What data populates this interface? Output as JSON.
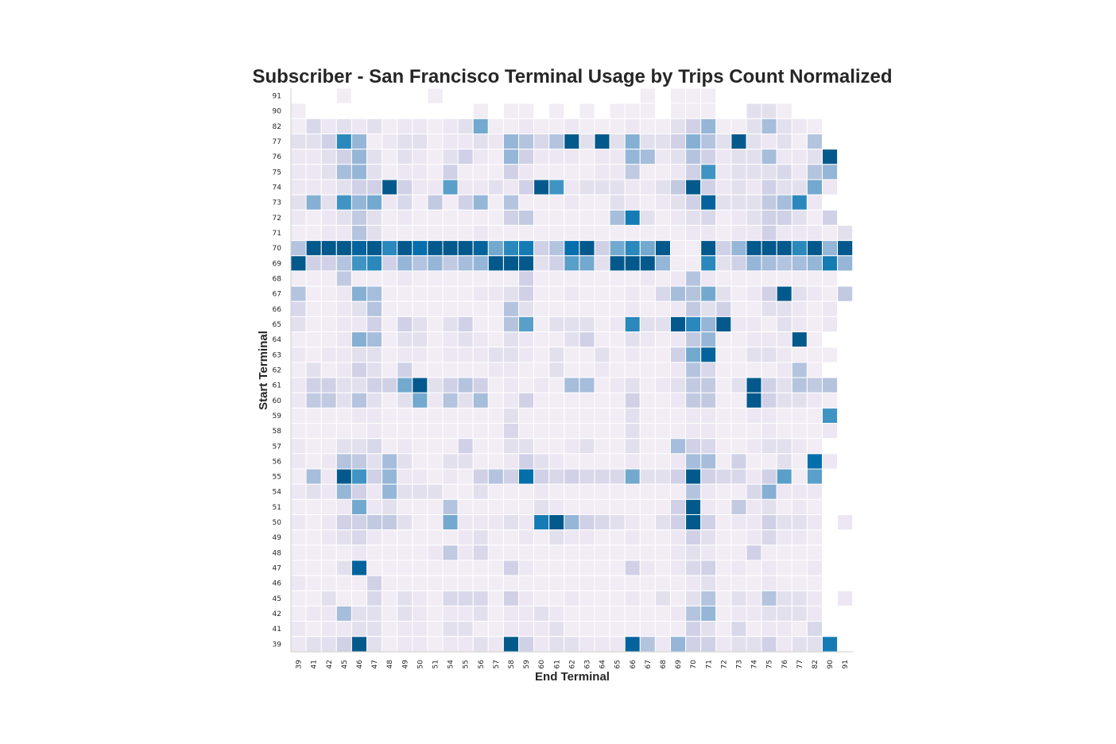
{
  "chart_data": {
    "type": "heatmap",
    "title": "Subscriber - San Francisco Terminal Usage by Trips Count Normalized",
    "xlabel": "End Terminal",
    "ylabel": "Start Terminal",
    "x_categories": [
      "39",
      "41",
      "42",
      "45",
      "46",
      "47",
      "48",
      "49",
      "50",
      "51",
      "54",
      "55",
      "56",
      "57",
      "58",
      "59",
      "60",
      "61",
      "62",
      "63",
      "64",
      "65",
      "66",
      "67",
      "68",
      "69",
      "70",
      "71",
      "72",
      "73",
      "74",
      "75",
      "76",
      "77",
      "82",
      "90",
      "91"
    ],
    "y_categories": [
      "91",
      "90",
      "82",
      "77",
      "76",
      "75",
      "74",
      "73",
      "72",
      "71",
      "70",
      "69",
      "68",
      "67",
      "66",
      "65",
      "64",
      "63",
      "62",
      "61",
      "60",
      "59",
      "58",
      "57",
      "56",
      "55",
      "54",
      "51",
      "50",
      "49",
      "48",
      "47",
      "46",
      "45",
      "42",
      "41",
      "39"
    ],
    "color_scale": "PuBu",
    "value_range": [
      0,
      1
    ],
    "grid": false,
    "legend": "none",
    "rows": [
      [
        0,
        0,
        0,
        0.1,
        0,
        0,
        0,
        0,
        0,
        0.1,
        0,
        0,
        0,
        0,
        0,
        0,
        0,
        0,
        0,
        0,
        0,
        0,
        0,
        0.1,
        0,
        0.1,
        0.1,
        0.1,
        0,
        0,
        0,
        0,
        0,
        0,
        0,
        0,
        0
      ],
      [
        0.1,
        0,
        0,
        0,
        0,
        0,
        0,
        0,
        0,
        0,
        0,
        0,
        0.1,
        0,
        0.1,
        0.1,
        0,
        0.1,
        0,
        0.1,
        0,
        0.1,
        0.1,
        0.1,
        0,
        0.1,
        0.1,
        0.1,
        0,
        0,
        0.2,
        0.2,
        0.1,
        0,
        0,
        0,
        0
      ],
      [
        0.1,
        0.25,
        0.15,
        0.2,
        0.15,
        0.2,
        0.1,
        0.15,
        0.15,
        0.1,
        0.15,
        0.2,
        0.6,
        0.1,
        0.1,
        0.15,
        0.1,
        0.1,
        0.15,
        0.1,
        0.1,
        0.1,
        0.15,
        0.1,
        0.1,
        0.2,
        0.3,
        0.5,
        0.1,
        0.1,
        0.2,
        0.45,
        0.2,
        0.15,
        0.1,
        0,
        0
      ],
      [
        0.2,
        0.2,
        0.3,
        0.75,
        0.5,
        0.1,
        0.15,
        0.2,
        0.2,
        0.1,
        0.15,
        0.15,
        0.2,
        0.15,
        0.5,
        0.4,
        0.25,
        0.4,
        0.95,
        0.2,
        0.95,
        0.2,
        0.55,
        0.2,
        0.2,
        0.3,
        0.55,
        0.4,
        0.2,
        0.95,
        0.2,
        0.15,
        0.2,
        0.1,
        0.4,
        0,
        0
      ],
      [
        0.15,
        0.15,
        0.2,
        0.3,
        0.5,
        0.2,
        0.1,
        0.2,
        0.15,
        0.1,
        0.2,
        0.3,
        0.15,
        0.1,
        0.5,
        0.3,
        0.15,
        0.15,
        0.15,
        0.1,
        0.15,
        0.15,
        0.5,
        0.45,
        0.15,
        0.2,
        0.4,
        0.3,
        0.15,
        0.2,
        0.2,
        0.45,
        0.15,
        0.15,
        0.2,
        0.95,
        0
      ],
      [
        0.15,
        0.15,
        0.2,
        0.45,
        0.5,
        0.2,
        0.1,
        0.15,
        0.15,
        0.1,
        0.3,
        0.1,
        0.1,
        0.1,
        0.3,
        0.15,
        0.1,
        0.1,
        0.1,
        0.1,
        0.15,
        0.15,
        0.35,
        0.1,
        0.1,
        0.15,
        0.3,
        0.7,
        0.15,
        0.2,
        0.2,
        0.2,
        0.25,
        0.15,
        0.4,
        0.5,
        0
      ],
      [
        0.15,
        0.15,
        0.15,
        0.2,
        0.3,
        0.3,
        0.95,
        0.3,
        0.15,
        0.15,
        0.65,
        0.15,
        0.15,
        0.2,
        0.15,
        0.3,
        0.95,
        0.7,
        0.15,
        0.2,
        0.2,
        0.2,
        0.15,
        0.15,
        0.2,
        0.35,
        0.95,
        0.3,
        0.15,
        0.2,
        0.15,
        0.3,
        0.2,
        0.2,
        0.6,
        0.15,
        0
      ],
      [
        0.2,
        0.55,
        0.2,
        0.7,
        0.5,
        0.6,
        0.15,
        0.25,
        0.1,
        0.35,
        0.1,
        0.3,
        0.5,
        0.1,
        0.4,
        0.1,
        0.1,
        0.1,
        0.15,
        0.1,
        0.1,
        0.2,
        0.15,
        0.1,
        0.15,
        0.2,
        0.3,
        0.9,
        0.2,
        0.2,
        0.2,
        0.35,
        0.45,
        0.75,
        0.15,
        0,
        0
      ],
      [
        0.15,
        0.1,
        0.15,
        0.2,
        0.35,
        0.2,
        0.1,
        0.15,
        0.1,
        0.1,
        0.1,
        0.1,
        0.1,
        0.1,
        0.3,
        0.35,
        0.1,
        0.1,
        0.1,
        0.1,
        0.1,
        0.45,
        0.8,
        0.2,
        0.1,
        0.15,
        0.2,
        0.25,
        0.1,
        0.15,
        0.2,
        0.3,
        0.3,
        0.2,
        0.1,
        0.3,
        0
      ],
      [
        0.1,
        0.1,
        0.15,
        0.15,
        0.4,
        0.2,
        0.1,
        0.1,
        0.1,
        0.1,
        0.1,
        0.1,
        0.15,
        0.1,
        0.1,
        0.1,
        0.1,
        0.1,
        0.1,
        0.1,
        0.1,
        0.1,
        0.1,
        0.1,
        0.1,
        0.1,
        0.15,
        0.15,
        0.1,
        0.15,
        0.15,
        0.3,
        0.15,
        0.15,
        0.15,
        0.1,
        0.2
      ],
      [
        0.4,
        0.95,
        0.95,
        0.95,
        0.9,
        0.95,
        0.75,
        0.95,
        0.85,
        0.95,
        0.95,
        0.95,
        0.9,
        0.6,
        0.75,
        0.8,
        0.3,
        0.4,
        0.85,
        0.95,
        0.3,
        0.6,
        0.75,
        0.6,
        0.95,
        0.1,
        0.1,
        0.95,
        0.3,
        0.5,
        0.95,
        0.95,
        0.95,
        0.75,
        0.95,
        0.5,
        0.95
      ],
      [
        0.95,
        0.3,
        0.3,
        0.4,
        0.7,
        0.75,
        0.3,
        0.5,
        0.4,
        0.5,
        0.35,
        0.45,
        0.5,
        0.95,
        0.95,
        0.95,
        0.2,
        0.3,
        0.65,
        0.6,
        0.2,
        0.95,
        0.95,
        0.95,
        0.5,
        0.1,
        0.1,
        0.75,
        0.2,
        0.3,
        0.5,
        0.45,
        0.4,
        0.45,
        0.5,
        0.8,
        0.5
      ],
      [
        0.1,
        0.1,
        0.1,
        0.35,
        0.1,
        0.1,
        0.1,
        0.15,
        0.1,
        0.1,
        0.1,
        0.1,
        0.1,
        0.1,
        0.1,
        0.3,
        0.1,
        0.1,
        0.1,
        0.1,
        0.1,
        0.1,
        0.1,
        0.15,
        0.1,
        0.15,
        0.4,
        0.15,
        0.1,
        0.1,
        0.1,
        0.1,
        0.1,
        0.1,
        0.1,
        0.1,
        0
      ],
      [
        0.4,
        0.1,
        0.1,
        0.15,
        0.55,
        0.45,
        0.1,
        0.1,
        0.1,
        0.1,
        0.1,
        0.1,
        0.15,
        0.15,
        0.2,
        0.3,
        0.1,
        0.1,
        0.15,
        0.1,
        0.1,
        0.1,
        0.15,
        0.1,
        0.25,
        0.45,
        0.4,
        0.6,
        0.2,
        0.1,
        0.15,
        0.3,
        0.95,
        0.2,
        0.15,
        0.1,
        0.35
      ],
      [
        0.25,
        0.1,
        0.1,
        0.15,
        0.2,
        0.4,
        0.1,
        0.1,
        0.1,
        0.1,
        0.1,
        0.1,
        0.1,
        0.1,
        0.4,
        0.2,
        0.1,
        0.1,
        0.1,
        0.1,
        0.1,
        0.1,
        0.15,
        0.1,
        0.1,
        0.15,
        0.35,
        0.2,
        0.3,
        0.1,
        0.1,
        0.2,
        0.2,
        0.15,
        0.1,
        0.15,
        0
      ],
      [
        0.2,
        0.1,
        0.1,
        0.15,
        0.15,
        0.3,
        0.1,
        0.3,
        0.2,
        0.1,
        0.2,
        0.3,
        0.1,
        0.1,
        0.4,
        0.65,
        0.1,
        0.2,
        0.2,
        0.2,
        0.1,
        0.15,
        0.75,
        0.2,
        0.2,
        0.95,
        0.75,
        0.5,
        0.95,
        0.15,
        0.15,
        0.1,
        0.2,
        0.15,
        0.1,
        0.15,
        0
      ],
      [
        0.1,
        0.1,
        0.1,
        0.15,
        0.55,
        0.45,
        0.1,
        0.2,
        0.2,
        0.1,
        0.15,
        0.2,
        0.15,
        0.1,
        0.2,
        0.15,
        0.1,
        0.1,
        0.2,
        0.3,
        0.1,
        0.1,
        0.2,
        0.15,
        0.1,
        0.15,
        0.35,
        0.5,
        0.1,
        0.1,
        0.15,
        0.15,
        0.15,
        0.95,
        0.1,
        0,
        0
      ],
      [
        0.15,
        0.1,
        0.15,
        0.15,
        0.2,
        0.2,
        0.1,
        0.15,
        0.15,
        0.1,
        0.15,
        0.15,
        0.15,
        0.2,
        0.2,
        0.15,
        0.1,
        0.2,
        0.1,
        0.1,
        0.2,
        0.1,
        0.15,
        0.1,
        0.1,
        0.3,
        0.6,
        0.9,
        0.1,
        0.1,
        0.2,
        0.2,
        0.15,
        0.1,
        0.1,
        0.1,
        0
      ],
      [
        0.1,
        0.2,
        0.1,
        0.15,
        0.3,
        0.2,
        0.1,
        0.3,
        0.1,
        0.1,
        0.1,
        0.1,
        0.1,
        0.15,
        0.15,
        0.1,
        0.1,
        0.2,
        0.1,
        0.1,
        0.15,
        0.1,
        0.1,
        0.1,
        0.1,
        0.15,
        0.4,
        0.25,
        0.1,
        0.1,
        0.1,
        0.1,
        0.15,
        0.4,
        0.1,
        0,
        0
      ],
      [
        0.15,
        0.3,
        0.3,
        0.2,
        0.2,
        0.3,
        0.3,
        0.6,
        0.95,
        0.2,
        0.3,
        0.4,
        0.3,
        0.1,
        0.15,
        0.1,
        0.15,
        0.1,
        0.45,
        0.45,
        0.1,
        0.15,
        0.2,
        0.1,
        0.15,
        0.2,
        0.35,
        0.35,
        0.1,
        0.2,
        0.95,
        0.3,
        0.2,
        0.4,
        0.35,
        0.4,
        0
      ],
      [
        0.15,
        0.35,
        0.35,
        0.2,
        0.4,
        0.2,
        0.1,
        0.2,
        0.6,
        0.15,
        0.4,
        0.2,
        0.45,
        0.1,
        0.15,
        0.3,
        0.1,
        0.1,
        0.1,
        0.1,
        0.1,
        0.1,
        0.3,
        0.1,
        0.1,
        0.15,
        0.35,
        0.35,
        0.1,
        0.1,
        0.95,
        0.3,
        0.2,
        0.2,
        0.15,
        0.1,
        0
      ],
      [
        0.1,
        0.1,
        0.1,
        0.1,
        0.15,
        0.15,
        0.1,
        0.1,
        0.1,
        0.1,
        0.1,
        0.1,
        0.1,
        0.1,
        0.2,
        0.1,
        0.1,
        0.1,
        0.1,
        0.1,
        0.1,
        0.1,
        0.2,
        0.1,
        0.1,
        0.1,
        0.15,
        0.15,
        0.1,
        0.1,
        0.15,
        0.15,
        0.1,
        0.1,
        0.1,
        0.7,
        0
      ],
      [
        0.1,
        0.1,
        0.1,
        0.1,
        0.1,
        0.15,
        0.1,
        0.1,
        0.1,
        0.1,
        0.1,
        0.1,
        0.1,
        0.1,
        0.25,
        0.1,
        0.1,
        0.1,
        0.1,
        0.1,
        0.1,
        0.1,
        0.2,
        0.1,
        0.1,
        0.1,
        0.15,
        0.15,
        0.1,
        0.1,
        0.1,
        0.15,
        0.1,
        0.1,
        0.1,
        0.15,
        0
      ],
      [
        0.15,
        0.1,
        0.1,
        0.2,
        0.2,
        0.25,
        0.1,
        0.15,
        0.1,
        0.1,
        0.1,
        0.3,
        0.1,
        0.1,
        0.2,
        0.2,
        0.1,
        0.1,
        0.15,
        0.2,
        0.1,
        0.1,
        0.2,
        0.1,
        0.1,
        0.45,
        0.3,
        0.25,
        0.1,
        0.1,
        0.15,
        0.2,
        0.2,
        0.15,
        0.1,
        0,
        0
      ],
      [
        0.15,
        0.1,
        0.15,
        0.4,
        0.35,
        0.2,
        0.45,
        0.2,
        0.1,
        0.1,
        0.2,
        0.2,
        0.1,
        0.1,
        0.15,
        0.3,
        0.2,
        0.15,
        0.1,
        0.1,
        0.1,
        0.1,
        0.15,
        0.1,
        0.1,
        0.15,
        0.45,
        0.45,
        0.1,
        0.3,
        0.1,
        0.1,
        0.2,
        0.1,
        0.85,
        0.15,
        0
      ],
      [
        0.1,
        0.45,
        0.15,
        0.95,
        0.7,
        0.3,
        0.5,
        0.15,
        0.15,
        0.1,
        0.15,
        0.1,
        0.3,
        0.4,
        0.3,
        0.85,
        0.3,
        0.25,
        0.3,
        0.25,
        0.25,
        0.25,
        0.6,
        0.2,
        0.2,
        0.3,
        0.95,
        0.3,
        0.25,
        0.25,
        0.15,
        0.3,
        0.65,
        0.1,
        0.65,
        0,
        0
      ],
      [
        0.15,
        0.2,
        0.15,
        0.5,
        0.3,
        0.15,
        0.5,
        0.2,
        0.2,
        0.2,
        0.1,
        0.1,
        0.2,
        0.1,
        0.1,
        0.1,
        0.15,
        0.1,
        0.1,
        0.1,
        0.1,
        0.1,
        0.1,
        0.1,
        0.1,
        0.1,
        0.4,
        0.15,
        0.1,
        0.1,
        0.25,
        0.55,
        0.15,
        0.15,
        0.15,
        0,
        0
      ],
      [
        0.1,
        0.1,
        0.1,
        0.15,
        0.6,
        0.15,
        0.2,
        0.1,
        0.1,
        0.1,
        0.4,
        0.1,
        0.1,
        0.1,
        0.1,
        0.1,
        0.2,
        0.15,
        0.1,
        0.1,
        0.1,
        0.1,
        0.1,
        0.1,
        0.1,
        0.3,
        0.95,
        0.15,
        0.1,
        0.35,
        0.15,
        0.2,
        0.1,
        0.15,
        0.1,
        0,
        0
      ],
      [
        0.15,
        0.1,
        0.15,
        0.3,
        0.3,
        0.35,
        0.35,
        0.2,
        0.1,
        0.1,
        0.6,
        0.15,
        0.15,
        0.15,
        0.2,
        0.15,
        0.8,
        0.95,
        0.5,
        0.3,
        0.25,
        0.2,
        0.15,
        0.1,
        0.2,
        0.3,
        0.95,
        0.3,
        0.1,
        0.15,
        0.15,
        0.3,
        0.2,
        0.2,
        0.15,
        0,
        0.15
      ],
      [
        0.1,
        0.1,
        0.15,
        0.2,
        0.25,
        0.15,
        0.1,
        0.1,
        0.1,
        0.1,
        0.1,
        0.15,
        0.2,
        0.1,
        0.1,
        0.15,
        0.1,
        0.2,
        0.15,
        0.15,
        0.1,
        0.1,
        0.15,
        0.1,
        0.1,
        0.15,
        0.3,
        0.2,
        0.1,
        0.1,
        0.15,
        0.25,
        0.15,
        0.15,
        0.1,
        0,
        0
      ],
      [
        0.1,
        0.1,
        0.1,
        0.1,
        0.15,
        0.1,
        0.1,
        0.1,
        0.1,
        0.15,
        0.35,
        0.15,
        0.25,
        0.1,
        0.1,
        0.1,
        0.1,
        0.1,
        0.1,
        0.1,
        0.1,
        0.1,
        0.1,
        0.1,
        0.1,
        0.15,
        0.2,
        0.15,
        0.1,
        0.1,
        0.3,
        0.1,
        0.1,
        0.1,
        0.1,
        0,
        0
      ],
      [
        0.1,
        0.1,
        0.1,
        0.2,
        0.9,
        0.1,
        0.1,
        0.1,
        0.1,
        0.1,
        0.1,
        0.1,
        0.1,
        0.1,
        0.3,
        0.15,
        0.1,
        0.1,
        0.1,
        0.1,
        0.1,
        0.1,
        0.3,
        0.15,
        0.1,
        0.15,
        0.25,
        0.3,
        0.1,
        0.15,
        0.1,
        0.15,
        0.1,
        0.1,
        0.15,
        0,
        0
      ],
      [
        0.15,
        0.1,
        0.1,
        0.1,
        0.1,
        0.3,
        0.1,
        0.1,
        0.1,
        0.1,
        0.1,
        0.1,
        0.1,
        0.1,
        0.1,
        0.1,
        0.1,
        0.1,
        0.1,
        0.1,
        0.1,
        0.1,
        0.1,
        0.1,
        0.1,
        0.1,
        0.15,
        0.2,
        0.1,
        0.1,
        0.1,
        0.15,
        0.1,
        0.1,
        0.1,
        0,
        0
      ],
      [
        0.1,
        0.1,
        0.2,
        0.1,
        0.1,
        0.25,
        0.1,
        0.2,
        0.15,
        0.1,
        0.25,
        0.25,
        0.25,
        0.1,
        0.3,
        0.15,
        0.1,
        0.1,
        0.15,
        0.1,
        0.1,
        0.1,
        0.15,
        0.1,
        0.2,
        0.1,
        0.2,
        0.4,
        0.1,
        0.2,
        0.15,
        0.4,
        0.2,
        0.2,
        0.15,
        0,
        0.15
      ],
      [
        0.1,
        0.15,
        0.15,
        0.45,
        0.2,
        0.2,
        0.1,
        0.2,
        0.15,
        0.1,
        0.15,
        0.15,
        0.2,
        0.1,
        0.15,
        0.15,
        0.2,
        0.15,
        0.1,
        0.1,
        0.1,
        0.1,
        0.1,
        0.1,
        0.1,
        0.15,
        0.4,
        0.5,
        0.1,
        0.15,
        0.15,
        0.2,
        0.2,
        0.2,
        0.15,
        0,
        0
      ],
      [
        0.15,
        0.1,
        0.15,
        0.15,
        0.2,
        0.2,
        0.1,
        0.15,
        0.15,
        0.1,
        0.2,
        0.2,
        0.1,
        0.1,
        0.15,
        0.15,
        0.15,
        0.2,
        0.1,
        0.1,
        0.1,
        0.1,
        0.1,
        0.1,
        0.1,
        0.1,
        0.3,
        0.2,
        0.1,
        0.25,
        0.1,
        0.15,
        0.15,
        0.1,
        0.25,
        0,
        0
      ],
      [
        0.15,
        0.2,
        0.2,
        0.3,
        0.95,
        0.2,
        0.1,
        0.15,
        0.15,
        0.1,
        0.15,
        0.15,
        0.2,
        0.15,
        0.95,
        0.3,
        0.15,
        0.2,
        0.2,
        0.15,
        0.15,
        0.15,
        0.9,
        0.4,
        0.15,
        0.5,
        0.3,
        0.3,
        0.15,
        0.2,
        0.2,
        0.3,
        0.15,
        0.2,
        0.2,
        0.8,
        0
      ]
    ]
  }
}
